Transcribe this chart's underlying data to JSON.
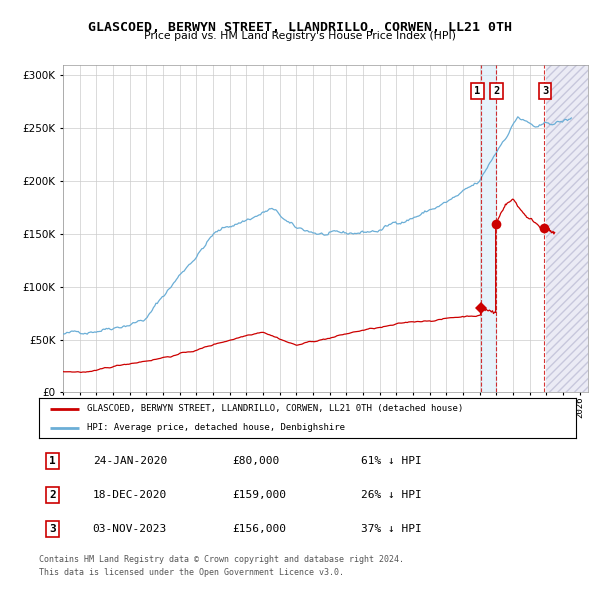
{
  "title": "GLASCOED, BERWYN STREET, LLANDRILLO, CORWEN, LL21 0TH",
  "subtitle": "Price paid vs. HM Land Registry's House Price Index (HPI)",
  "legend_label_red": "GLASCOED, BERWYN STREET, LLANDRILLO, CORWEN, LL21 0TH (detached house)",
  "legend_label_blue": "HPI: Average price, detached house, Denbighshire",
  "footer_line1": "Contains HM Land Registry data © Crown copyright and database right 2024.",
  "footer_line2": "This data is licensed under the Open Government Licence v3.0.",
  "transactions": [
    {
      "label": "1",
      "date": "24-JAN-2020",
      "price": "£80,000",
      "pct": "61% ↓ HPI"
    },
    {
      "label": "2",
      "date": "18-DEC-2020",
      "price": "£159,000",
      "pct": "26% ↓ HPI"
    },
    {
      "label": "3",
      "date": "03-NOV-2023",
      "price": "£156,000",
      "pct": "37% ↓ HPI"
    }
  ],
  "sale_values": [
    80000,
    159000,
    156000
  ],
  "sale_years": [
    2020.07,
    2020.96,
    2023.84
  ],
  "ylim": [
    0,
    310000
  ],
  "xlim_start": 1995.0,
  "xlim_end": 2026.5,
  "hpi_color": "#6baed6",
  "sale_color": "#cc0000",
  "grid_color": "#cccccc",
  "bg_color": "#ffffff",
  "future_start": 2024.0,
  "yticks": [
    0,
    50000,
    100000,
    150000,
    200000,
    250000,
    300000
  ],
  "xtick_start": 1995,
  "xtick_end": 2026
}
